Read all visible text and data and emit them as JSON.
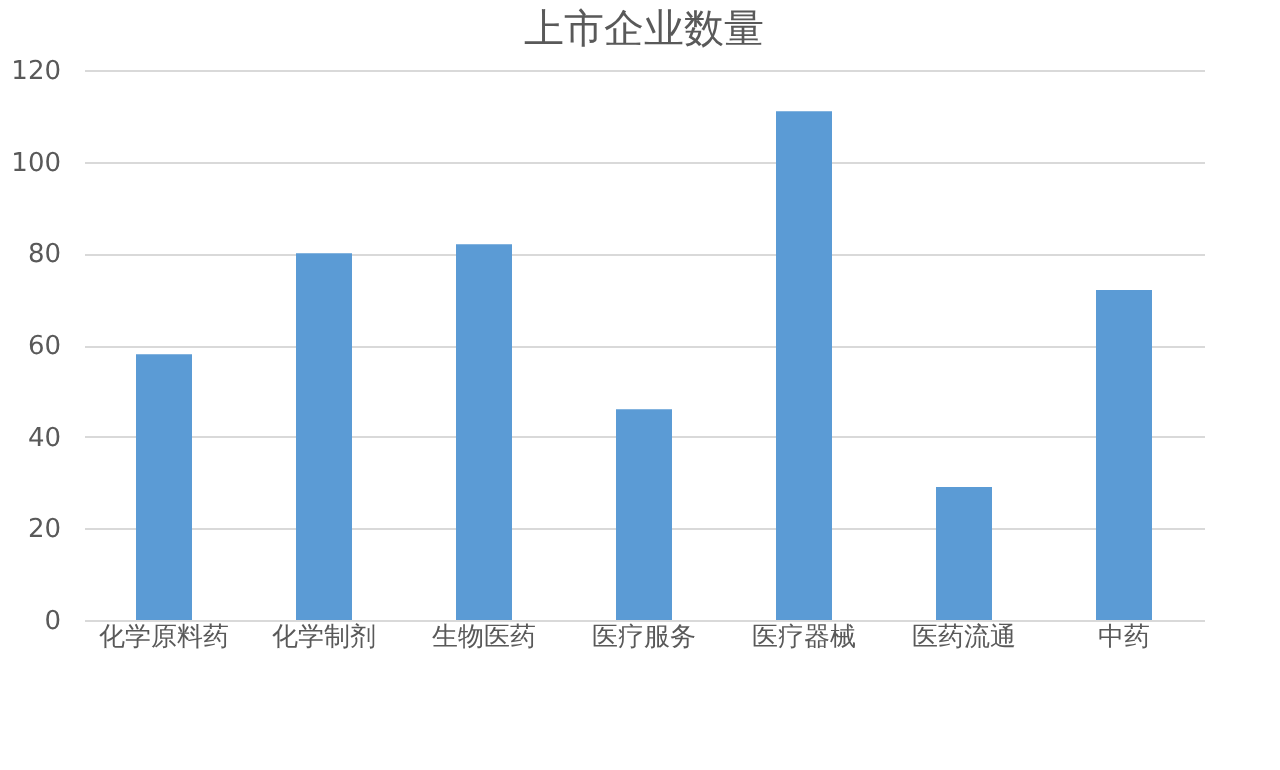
{
  "chart_data": {
    "type": "bar",
    "title": "上市企业数量",
    "categories": [
      "化学原料药",
      "化学制剂",
      "生物医药",
      "医疗服务",
      "医疗器械",
      "医药流通",
      "中药"
    ],
    "values": [
      58,
      80,
      82,
      46,
      111,
      29,
      72
    ],
    "color": "#5b9bd5",
    "ylim": [
      0,
      120
    ],
    "yticks": [
      0,
      20,
      40,
      60,
      80,
      100,
      120
    ],
    "grid": "y"
  }
}
